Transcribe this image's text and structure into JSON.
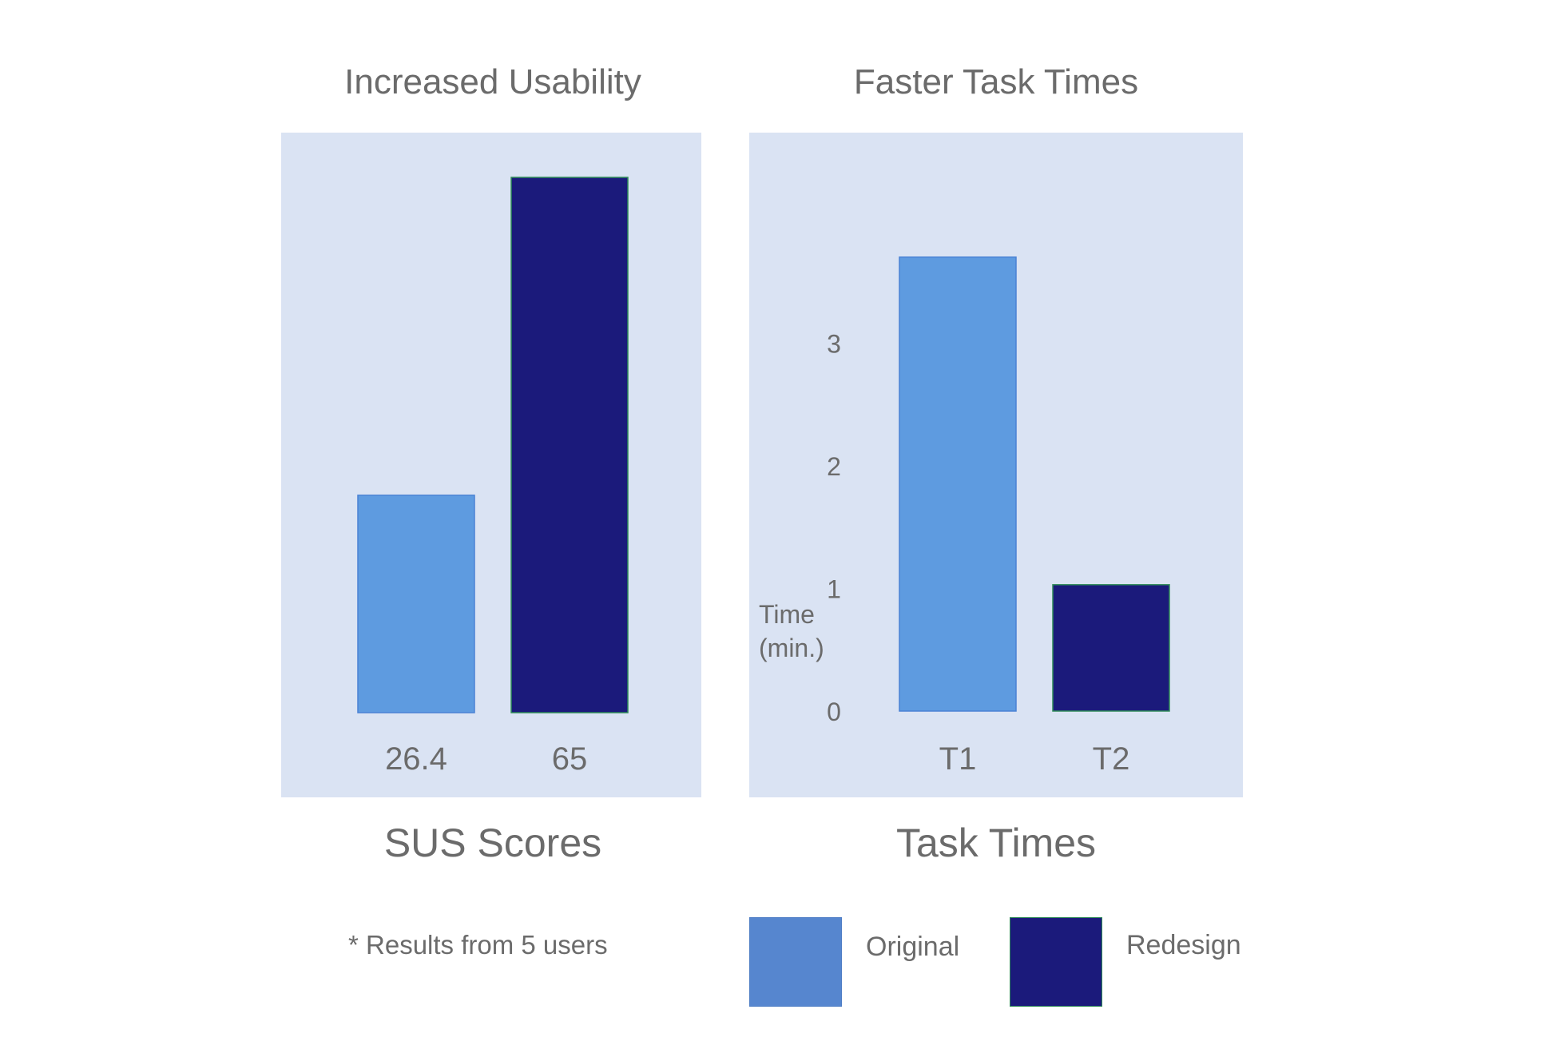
{
  "chart_data": [
    {
      "type": "bar",
      "title": "Increased Usability",
      "xlabel": "SUS Scores",
      "categories": [
        "26.4",
        "65"
      ],
      "values": [
        26.4,
        65
      ],
      "colors": [
        "#5e9be0",
        "#1b1a7b"
      ],
      "ylim": [
        0,
        65
      ],
      "grid": false
    },
    {
      "type": "bar",
      "title": "Faster Task Times",
      "xlabel": "Task Times",
      "ylabel": "Time (min.)",
      "ylabel_lines": [
        "Time",
        "(min.)"
      ],
      "categories": [
        "T1",
        "T2"
      ],
      "values": [
        3.7,
        1.03
      ],
      "colors": [
        "#5e9be0",
        "#1b1a7b"
      ],
      "yticks": [
        0,
        1,
        2,
        3
      ],
      "ylim": [
        0,
        4.35
      ],
      "grid": false
    }
  ],
  "note": "* Results from 5 users",
  "legend": [
    {
      "label": "Original",
      "color": "#5686cf"
    },
    {
      "label": "Redesign",
      "color": "#1b1a7b"
    }
  ]
}
